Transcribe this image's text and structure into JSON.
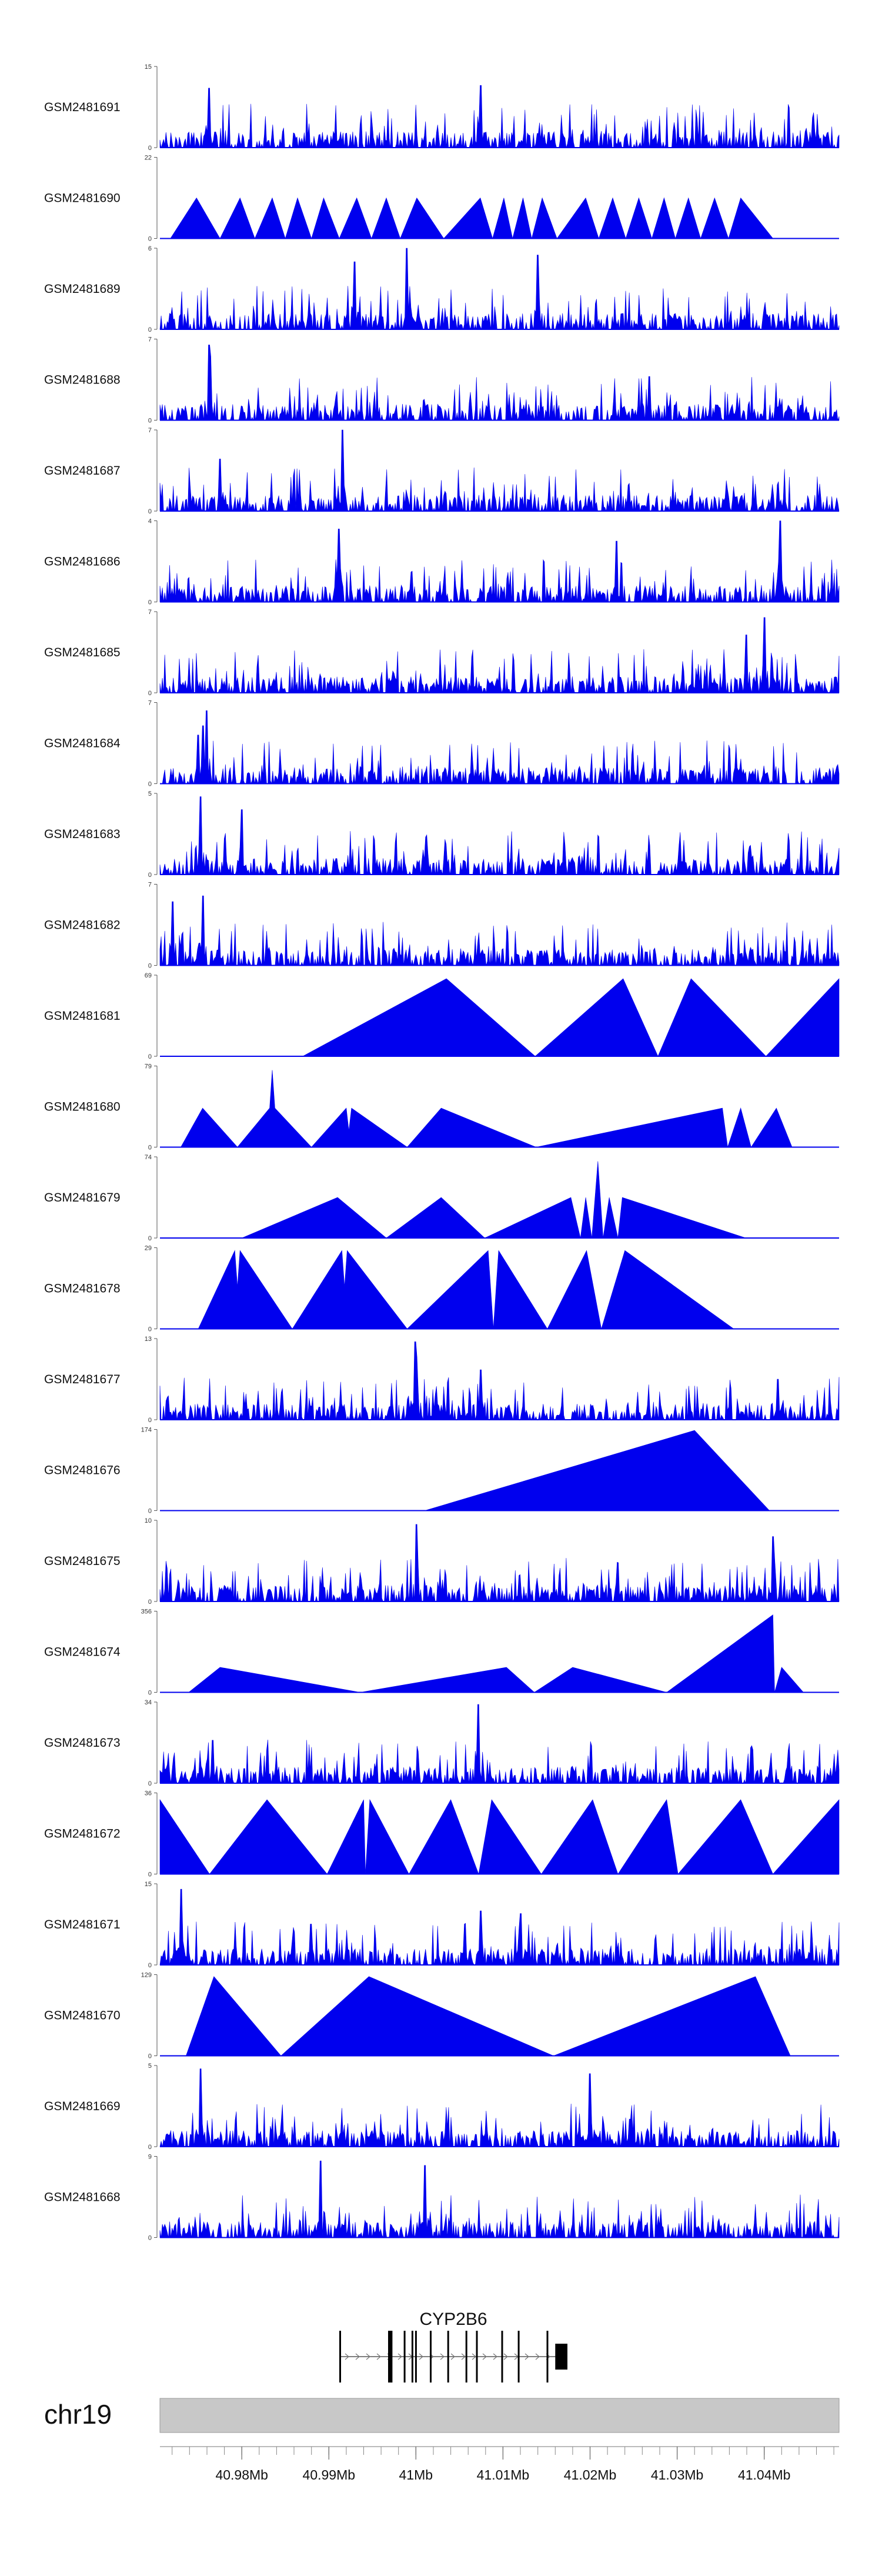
{
  "chart_data": {
    "type": "area",
    "title": "",
    "x_unit": "Mb",
    "xlim": [
      40.9706,
      41.0486
    ],
    "fill_color": "#0000ee",
    "tracks": [
      {
        "name": "GSM2481691",
        "ymax": 15,
        "ymin": 0,
        "style": "dense",
        "peaks": [
          [
            40.9763,
            11.0
          ],
          [
            41.0075,
            11.5
          ]
        ]
      },
      {
        "name": "GSM2481690",
        "ymax": 22,
        "ymin": 0,
        "style": "triangles",
        "peaks": [
          [
            40.9718,
            0
          ],
          [
            40.9748,
            11
          ],
          [
            40.9775,
            0
          ],
          [
            40.9798,
            11
          ],
          [
            40.9815,
            0
          ],
          [
            40.9835,
            11
          ],
          [
            40.985,
            0
          ],
          [
            40.9864,
            11
          ],
          [
            40.988,
            0
          ],
          [
            40.9894,
            11
          ],
          [
            40.9912,
            0
          ],
          [
            40.9932,
            11
          ],
          [
            40.9949,
            0
          ],
          [
            40.9966,
            11
          ],
          [
            40.9982,
            0
          ],
          [
            41.0001,
            11
          ],
          [
            41.0032,
            0
          ],
          [
            41.0074,
            11
          ],
          [
            41.0088,
            0
          ],
          [
            41.0101,
            11
          ],
          [
            41.0111,
            0
          ],
          [
            41.0123,
            11
          ],
          [
            41.0133,
            0
          ],
          [
            41.0145,
            11
          ],
          [
            41.0162,
            0
          ],
          [
            41.0195,
            11
          ],
          [
            41.021,
            0
          ],
          [
            41.0226,
            11
          ],
          [
            41.0241,
            0
          ],
          [
            41.0256,
            11
          ],
          [
            41.0271,
            0
          ],
          [
            41.0285,
            11
          ],
          [
            41.0298,
            0
          ],
          [
            41.0313,
            11
          ],
          [
            41.0327,
            0
          ],
          [
            41.0343,
            11
          ],
          [
            41.0359,
            0
          ],
          [
            41.0373,
            11
          ],
          [
            41.041,
            0
          ]
        ]
      },
      {
        "name": "GSM2481689",
        "ymax": 6,
        "ymin": 0,
        "style": "dense",
        "peaks": [
          [
            40.999,
            6.0
          ],
          [
            41.014,
            5.5
          ],
          [
            40.993,
            5.0
          ]
        ]
      },
      {
        "name": "GSM2481688",
        "ymax": 7,
        "ymin": 0,
        "style": "dense",
        "peaks": [
          [
            40.9762,
            6.5
          ],
          [
            40.9764,
            5.5
          ]
        ]
      },
      {
        "name": "GSM2481687",
        "ymax": 7,
        "ymin": 0,
        "style": "dense",
        "peaks": [
          [
            40.9915,
            7.0
          ],
          [
            40.9775,
            4.5
          ]
        ]
      },
      {
        "name": "GSM2481686",
        "ymax": 4,
        "ymin": 0,
        "style": "dense",
        "peaks": [
          [
            41.0418,
            4.0
          ],
          [
            40.9912,
            3.6
          ],
          [
            41.023,
            3.0
          ]
        ]
      },
      {
        "name": "GSM2481685",
        "ymax": 7,
        "ymin": 0,
        "style": "dense",
        "peaks": [
          [
            41.04,
            6.5
          ],
          [
            41.038,
            5.0
          ]
        ]
      },
      {
        "name": "GSM2481684",
        "ymax": 7,
        "ymin": 0,
        "style": "dense",
        "peaks": [
          [
            40.976,
            6.3
          ],
          [
            40.9755,
            5.0
          ],
          [
            40.975,
            4.2
          ]
        ]
      },
      {
        "name": "GSM2481683",
        "ymax": 5,
        "ymin": 0,
        "style": "dense",
        "peaks": [
          [
            40.9752,
            4.8
          ],
          [
            40.98,
            4.0
          ]
        ]
      },
      {
        "name": "GSM2481682",
        "ymax": 7,
        "ymin": 0,
        "style": "dense",
        "peaks": [
          [
            40.9755,
            6.0
          ],
          [
            40.972,
            5.5
          ]
        ]
      },
      {
        "name": "GSM2481681",
        "ymax": 69,
        "ymin": 0,
        "style": "triangles",
        "peaks": [
          [
            40.987,
            0
          ],
          [
            41.0035,
            66
          ],
          [
            41.0137,
            0
          ],
          [
            41.0238,
            66
          ],
          [
            41.0278,
            0
          ],
          [
            41.0316,
            66
          ],
          [
            41.0402,
            0
          ],
          [
            41.0486,
            66
          ]
        ]
      },
      {
        "name": "GSM2481680",
        "ymax": 79,
        "ymin": 0,
        "style": "triangles",
        "peaks": [
          [
            40.973,
            0
          ],
          [
            40.9755,
            38
          ],
          [
            40.9795,
            0
          ],
          [
            40.9832,
            38
          ],
          [
            40.9835,
            75
          ],
          [
            40.9838,
            38
          ],
          [
            40.988,
            0
          ],
          [
            40.992,
            38
          ],
          [
            40.9923,
            16
          ],
          [
            40.9926,
            38
          ],
          [
            40.999,
            0
          ],
          [
            41.0029,
            38
          ],
          [
            41.0138,
            0
          ],
          [
            41.0352,
            38
          ],
          [
            41.0358,
            0
          ],
          [
            41.0373,
            38
          ],
          [
            41.0385,
            0
          ],
          [
            41.0414,
            38
          ],
          [
            41.0432,
            0
          ]
        ]
      },
      {
        "name": "GSM2481679",
        "ymax": 74,
        "ymin": 0,
        "style": "triangles",
        "peaks": [
          [
            40.98,
            0
          ],
          [
            40.991,
            37
          ],
          [
            40.9966,
            0
          ],
          [
            41.0029,
            37
          ],
          [
            41.0079,
            0
          ],
          [
            41.0178,
            37
          ],
          [
            41.0189,
            0
          ],
          [
            41.0195,
            37
          ],
          [
            41.0202,
            0
          ],
          [
            41.0209,
            70
          ],
          [
            41.0215,
            0
          ],
          [
            41.0222,
            37
          ],
          [
            41.0232,
            0
          ],
          [
            41.0237,
            37
          ],
          [
            41.0379,
            0
          ]
        ]
      },
      {
        "name": "GSM2481678",
        "ymax": 29,
        "ymin": 0,
        "style": "triangles",
        "peaks": [
          [
            40.975,
            0
          ],
          [
            40.9792,
            28
          ],
          [
            40.9795,
            15
          ],
          [
            40.9798,
            28
          ],
          [
            40.9858,
            0
          ],
          [
            40.9915,
            28
          ],
          [
            40.9918,
            15
          ],
          [
            40.9921,
            28
          ],
          [
            40.999,
            0
          ],
          [
            41.0083,
            28
          ],
          [
            41.0089,
            0
          ],
          [
            41.0095,
            28
          ],
          [
            41.0151,
            0
          ],
          [
            41.0196,
            28
          ],
          [
            41.0213,
            0
          ],
          [
            41.024,
            28
          ],
          [
            41.0365,
            0
          ]
        ]
      },
      {
        "name": "GSM2481677",
        "ymax": 13,
        "ymin": 0,
        "style": "dense",
        "peaks": [
          [
            40.9999,
            12.5
          ],
          [
            41.0001,
            10.0
          ],
          [
            41.0075,
            8.0
          ],
          [
            41.0415,
            6.5
          ]
        ]
      },
      {
        "name": "GSM2481676",
        "ymax": 174,
        "ymin": 0,
        "style": "triangles",
        "peaks": [
          [
            41.001,
            0
          ],
          [
            41.032,
            172
          ],
          [
            41.0406,
            0
          ]
        ]
      },
      {
        "name": "GSM2481675",
        "ymax": 10,
        "ymin": 0,
        "style": "dense",
        "peaks": [
          [
            41.0001,
            9.5
          ],
          [
            41.041,
            8.0
          ]
        ]
      },
      {
        "name": "GSM2481674",
        "ymax": 356,
        "ymin": 0,
        "style": "triangles",
        "peaks": [
          [
            40.9739,
            0
          ],
          [
            40.9775,
            110
          ],
          [
            40.9936,
            0
          ],
          [
            41.0104,
            110
          ],
          [
            41.0136,
            0
          ],
          [
            41.018,
            110
          ],
          [
            41.0288,
            0
          ],
          [
            41.041,
            340
          ],
          [
            41.0412,
            0
          ],
          [
            41.042,
            110
          ],
          [
            41.0445,
            0
          ]
        ]
      },
      {
        "name": "GSM2481673",
        "ymax": 34,
        "ymin": 0,
        "style": "dense",
        "peaks": [
          [
            41.0072,
            33.0
          ],
          [
            40.9767,
            18.0
          ]
        ]
      },
      {
        "name": "GSM2481672",
        "ymax": 36,
        "ymin": 0,
        "style": "triangles",
        "peaks": [
          [
            40.9706,
            33
          ],
          [
            40.9763,
            0
          ],
          [
            40.9829,
            33
          ],
          [
            40.9898,
            0
          ],
          [
            40.994,
            33
          ],
          [
            40.9942,
            0
          ],
          [
            40.9947,
            33
          ],
          [
            40.9992,
            0
          ],
          [
            41.004,
            33
          ],
          [
            41.0072,
            0
          ],
          [
            41.0087,
            33
          ],
          [
            41.0144,
            0
          ],
          [
            41.0203,
            33
          ],
          [
            41.0232,
            0
          ],
          [
            41.0288,
            33
          ],
          [
            41.0301,
            0
          ],
          [
            41.0373,
            33
          ],
          [
            41.041,
            0
          ],
          [
            41.0486,
            33
          ]
        ]
      },
      {
        "name": "GSM2481671",
        "ymax": 15,
        "ymin": 0,
        "style": "dense",
        "peaks": [
          [
            40.973,
            14.0
          ],
          [
            41.0075,
            10.0
          ],
          [
            41.012,
            9.5
          ]
        ]
      },
      {
        "name": "GSM2481670",
        "ymax": 129,
        "ymin": 0,
        "style": "triangles",
        "peaks": [
          [
            40.9736,
            0
          ],
          [
            40.9768,
            126
          ],
          [
            40.9845,
            0
          ],
          [
            40.9946,
            126
          ],
          [
            41.0158,
            0
          ],
          [
            41.039,
            126
          ],
          [
            41.043,
            0
          ]
        ]
      },
      {
        "name": "GSM2481669",
        "ymax": 5,
        "ymin": 0,
        "style": "dense",
        "peaks": [
          [
            40.9752,
            4.8
          ],
          [
            41.02,
            4.5
          ]
        ]
      },
      {
        "name": "GSM2481668",
        "ymax": 9,
        "ymin": 0,
        "style": "dense",
        "peaks": [
          [
            40.989,
            8.5
          ],
          [
            41.001,
            8.0
          ]
        ]
      }
    ],
    "gene": {
      "name": "CYP2B6",
      "start": 40.9912,
      "end": 41.0174,
      "strand": "+",
      "exons": [
        [
          40.9912,
          40.9914
        ],
        [
          40.9968,
          40.9973
        ],
        [
          40.9986,
          40.9988
        ],
        [
          40.9995,
          40.9997
        ],
        [
          40.9999,
          41.0001
        ],
        [
          41.0016,
          41.0018
        ],
        [
          41.0036,
          41.0038
        ],
        [
          41.0057,
          41.0059
        ],
        [
          41.0069,
          41.0071
        ],
        [
          41.0098,
          41.01
        ],
        [
          41.0117,
          41.0119
        ],
        [
          41.015,
          41.0152
        ],
        [
          41.016,
          41.0174
        ]
      ]
    },
    "axis": {
      "chromosome": "chr19",
      "tick_labels": [
        "40.98Mb",
        "40.99Mb",
        "41Mb",
        "41.01Mb",
        "41.02Mb",
        "41.03Mb",
        "41.04Mb"
      ],
      "tick_values": [
        40.98,
        40.99,
        41.0,
        41.01,
        41.02,
        41.03,
        41.04
      ],
      "minor_tick_step": 0.002
    }
  }
}
